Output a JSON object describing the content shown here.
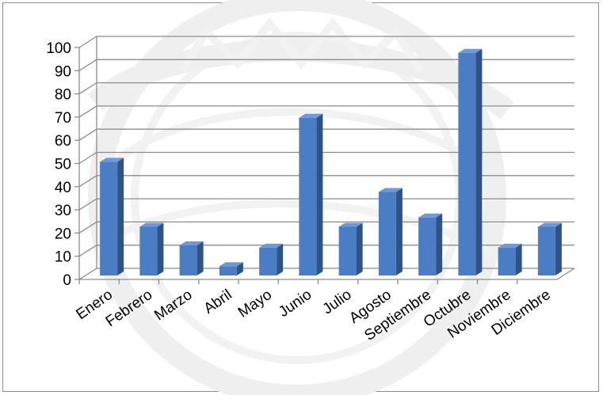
{
  "chart_data": {
    "type": "bar",
    "style": "3d-column",
    "categories": [
      "Enero",
      "Febrero",
      "Marzo",
      "Abril",
      "Mayo",
      "Junio",
      "Julio",
      "Agosto",
      "Septiembre",
      "Octubre",
      "Noviembre",
      "Diciembre"
    ],
    "values": [
      49,
      21,
      13,
      4,
      12,
      68,
      21,
      36,
      25,
      96,
      12,
      21
    ],
    "yticks": [
      "0",
      "10",
      "20",
      "30",
      "40",
      "50",
      "60",
      "70",
      "80",
      "90",
      "100"
    ],
    "ylim": [
      0,
      100
    ],
    "grid": true,
    "legend": "none",
    "title": "",
    "xlabel": "",
    "ylabel": ""
  },
  "colors": {
    "bar_front": "#4a7dc4",
    "bar_side": "#2f5387",
    "bar_top": "#6d9ad6",
    "gridline": "#8c8c8c",
    "border": "#8c8c8c"
  }
}
